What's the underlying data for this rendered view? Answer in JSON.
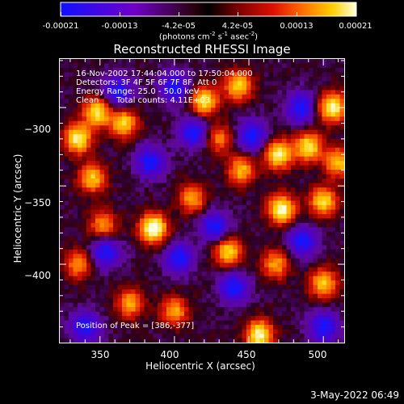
{
  "colorbar": {
    "ticks": [
      "-0.00021",
      "-0.00013",
      "-4.2e-05",
      "4.2e-05",
      "0.00013",
      "0.00021"
    ],
    "unit_main": "(photons cm",
    "unit_sup1": "-2",
    "unit_s": " s",
    "unit_sup2": "-1",
    "unit_asec": " asec",
    "unit_sup3": "-2",
    "unit_close": ")"
  },
  "header": {
    "title": "Reconstructed RHESSI Image",
    "line1": "16-Nov-2002 17:44:04.000 to 17:50:04.000",
    "line2": "Detectors: 3F 4F 5F 6F 7F 8F, Att 0",
    "line3": "Energy Range: 25.0 - 50.0 keV",
    "line4_a": "Clean",
    "line4_b": "Total counts: 4.11E+03"
  },
  "footer": {
    "peak": "Position of Peak = [386,-377]",
    "date": "3-May-2022 06:49"
  },
  "chart_data": {
    "type": "heatmap",
    "title": "Reconstructed RHESSI Image",
    "xlabel": "Heliocentric X (arcsec)",
    "ylabel": "Heliocentric Y (arcsec)",
    "xlim": [
      323,
      514
    ],
    "ylim": [
      -450,
      -269
    ],
    "xticks": [
      350,
      400,
      450,
      500
    ],
    "yticks": [
      -300,
      -350,
      -400
    ],
    "colorbar_range": [
      -0.00021,
      0.00021
    ],
    "peak": [
      386,
      -377
    ],
    "hotspots": [
      {
        "x": 386,
        "y": -377,
        "level": 1.0
      },
      {
        "x": 335,
        "y": -320,
        "level": 0.85
      },
      {
        "x": 348,
        "y": -303,
        "level": 0.8
      },
      {
        "x": 366,
        "y": -310,
        "level": 0.75
      },
      {
        "x": 420,
        "y": -296,
        "level": 0.8
      },
      {
        "x": 443,
        "y": -286,
        "level": 0.75
      },
      {
        "x": 470,
        "y": -330,
        "level": 0.85
      },
      {
        "x": 490,
        "y": -325,
        "level": 0.8
      },
      {
        "x": 506,
        "y": -300,
        "level": 0.9
      },
      {
        "x": 510,
        "y": -335,
        "level": 0.7
      },
      {
        "x": 345,
        "y": -345,
        "level": 0.7
      },
      {
        "x": 472,
        "y": -365,
        "level": 0.9
      },
      {
        "x": 500,
        "y": -360,
        "level": 0.75
      },
      {
        "x": 412,
        "y": -358,
        "level": 0.6
      },
      {
        "x": 445,
        "y": -340,
        "level": 0.65
      },
      {
        "x": 436,
        "y": -392,
        "level": 0.75
      },
      {
        "x": 468,
        "y": -400,
        "level": 0.6
      },
      {
        "x": 500,
        "y": -412,
        "level": 0.7
      },
      {
        "x": 457,
        "y": -445,
        "level": 0.9
      },
      {
        "x": 335,
        "y": -400,
        "level": 0.55
      },
      {
        "x": 370,
        "y": -425,
        "level": 0.6
      },
      {
        "x": 400,
        "y": -430,
        "level": 0.6
      },
      {
        "x": 352,
        "y": -375,
        "level": 0.55
      },
      {
        "x": 430,
        "y": -320,
        "level": 0.5
      }
    ],
    "coldspots": [
      {
        "x": 362,
        "y": -290
      },
      {
        "x": 400,
        "y": -287
      },
      {
        "x": 452,
        "y": -318
      },
      {
        "x": 384,
        "y": -335
      },
      {
        "x": 354,
        "y": -392
      },
      {
        "x": 403,
        "y": -396
      },
      {
        "x": 427,
        "y": -376
      },
      {
        "x": 486,
        "y": -385
      },
      {
        "x": 413,
        "y": -316
      },
      {
        "x": 485,
        "y": -300
      },
      {
        "x": 340,
        "y": -440
      },
      {
        "x": 500,
        "y": -440
      },
      {
        "x": 440,
        "y": -415
      }
    ]
  }
}
